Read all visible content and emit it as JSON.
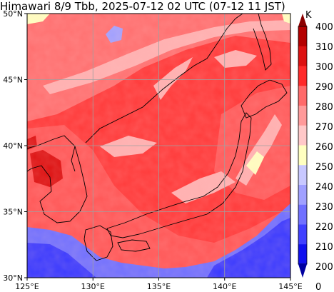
{
  "title": "Himawari 8/9 Tbb, 2025-07-12 02 UTC (07-12 11 JST)",
  "map": {
    "lon_range": [
      125,
      145
    ],
    "lat_range": [
      30,
      50
    ],
    "x_ticks": [
      "125°E",
      "130°E",
      "135°E",
      "140°E",
      "145°E"
    ],
    "y_ticks": [
      "30°N",
      "35°N",
      "40°N",
      "45°N",
      "50°N"
    ],
    "gridlines": true,
    "features": [
      "coastlines",
      "brightness temperature shading",
      "cloud bands",
      "cold high-cloud region (southwest)"
    ]
  },
  "colorbar": {
    "unit": "K",
    "labels": [
      "400",
      "310",
      "300",
      "290",
      "280",
      "270",
      "260",
      "250",
      "240",
      "230",
      "220",
      "210",
      "200",
      "0"
    ],
    "colors": [
      "#8b0000",
      "#b40000",
      "#dd1111",
      "#ff2a2a",
      "#ff6a6a",
      "#ff9a9a",
      "#ffc8c8",
      "#ffffc0",
      "#c8c8ff",
      "#a0a0ff",
      "#7070ff",
      "#4040ff",
      "#1010ee",
      "#0000a0"
    ],
    "extend_top_color": "#8b0000",
    "extend_bottom_color": "#0000a0"
  },
  "colors": {
    "background_warm": "#ff3a3a",
    "mid_warm": "#ff7070",
    "cool_cloud": "#ffb0b0",
    "cold_cloud": "#3a3aff",
    "coastline": "#000000",
    "grid": "#a0a0a0"
  }
}
